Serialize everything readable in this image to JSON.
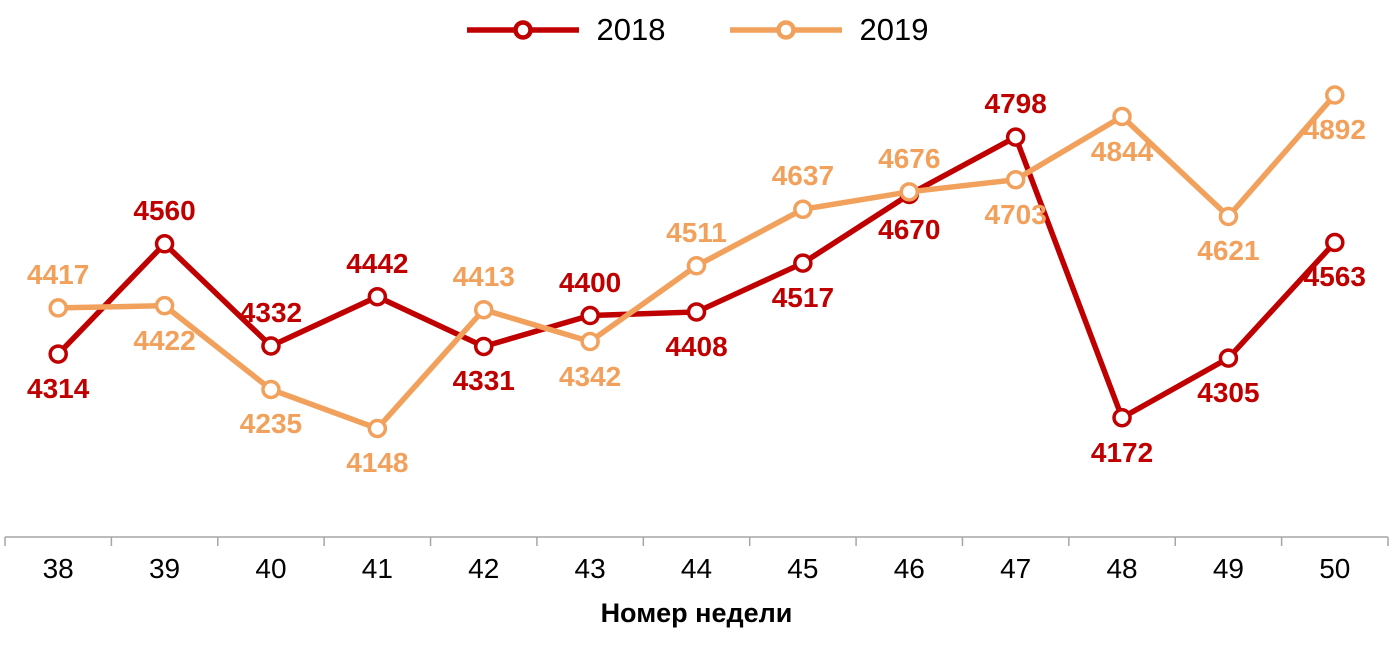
{
  "chart_data": {
    "type": "line",
    "title": "",
    "xlabel": "Номер недели",
    "ylabel": "",
    "categories": [
      "38",
      "39",
      "40",
      "41",
      "42",
      "43",
      "44",
      "45",
      "46",
      "47",
      "48",
      "49",
      "50"
    ],
    "series": [
      {
        "name": "2018",
        "color": "#C00000",
        "values": [
          4314,
          4560,
          4332,
          4442,
          4331,
          4400,
          4408,
          4517,
          4670,
          4798,
          4172,
          4305,
          4563
        ],
        "label_side": [
          "below",
          "above",
          "above",
          "above",
          "below",
          "above",
          "below",
          "below",
          "below",
          "above",
          "below",
          "below",
          "below"
        ]
      },
      {
        "name": "2019",
        "color": "#F2A15C",
        "values": [
          4417,
          4422,
          4235,
          4148,
          4413,
          4342,
          4511,
          4637,
          4676,
          4703,
          4844,
          4621,
          4892
        ],
        "label_side": [
          "above",
          "below",
          "below",
          "below",
          "above",
          "below",
          "above",
          "above",
          "above",
          "below",
          "below",
          "below",
          "below"
        ]
      }
    ],
    "ylim": [
      4100,
      4950
    ],
    "grid": false,
    "legend_position": "top",
    "marker": "open-circle",
    "axis_color": "#A6A6A6",
    "tick_label_color": "#000000",
    "data_labels_visible": true
  }
}
